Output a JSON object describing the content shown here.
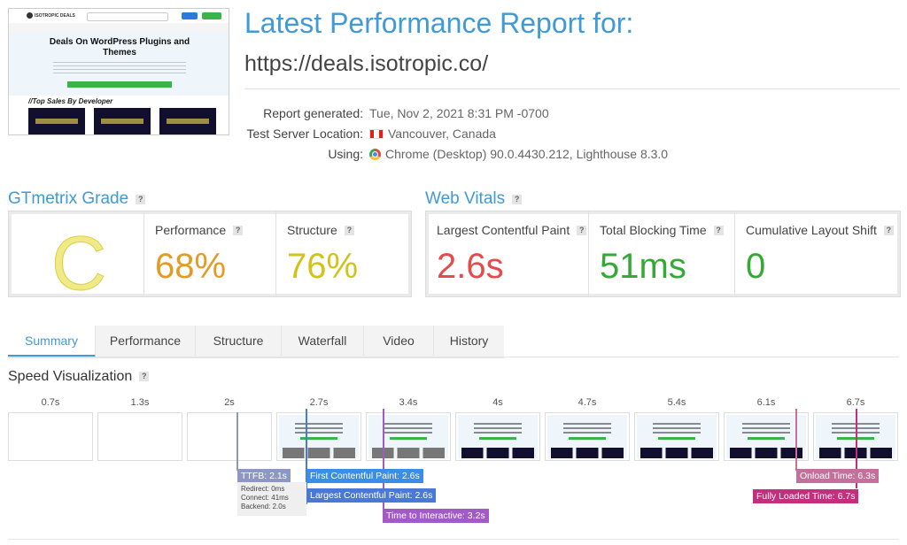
{
  "thumbnail": {
    "site_logo": "ISOTROPIC DEALS",
    "hero_title": "Deals On WordPress Plugins and Themes",
    "section_title": "//Top Sales By Developer"
  },
  "header": {
    "title": "Latest Performance Report for:",
    "url": "https://deals.isotropic.co/"
  },
  "meta": {
    "report_generated_label": "Report generated:",
    "report_generated_value": "Tue, Nov 2, 2021 8:31 PM -0700",
    "location_label": "Test Server Location:",
    "location_value": "Vancouver, Canada",
    "using_label": "Using:",
    "using_value": "Chrome (Desktop) 90.0.4430.212, Lighthouse 8.3.0"
  },
  "gtmetrix": {
    "title": "GTmetrix Grade",
    "grade": "C",
    "performance_label": "Performance",
    "performance_value": "68%",
    "structure_label": "Structure",
    "structure_value": "76%"
  },
  "web_vitals": {
    "title": "Web Vitals",
    "lcp_label": "Largest Contentful Paint",
    "lcp_value": "2.6s",
    "tbt_label": "Total Blocking Time",
    "tbt_value": "51ms",
    "cls_label": "Cumulative Layout Shift",
    "cls_value": "0"
  },
  "tabs": [
    {
      "label": "Summary",
      "active": true
    },
    {
      "label": "Performance"
    },
    {
      "label": "Structure"
    },
    {
      "label": "Waterfall"
    },
    {
      "label": "Video"
    },
    {
      "label": "History"
    }
  ],
  "speed": {
    "title": "Speed Visualization",
    "time_labels": [
      "0.7s",
      "1.3s",
      "2s",
      "2.7s",
      "3.4s",
      "4s",
      "4.7s",
      "5.4s",
      "6.1s",
      "6.7s"
    ],
    "markers": {
      "ttfb": "TTFB: 2.1s",
      "fcp": "First Contentful Paint: 2.6s",
      "lcp": "Largest Contentful Paint: 2.6s",
      "tti": "Time to Interactive: 3.2s",
      "onload": "Onload Time: 6.3s",
      "fully_loaded": "Fully Loaded Time: 6.7s"
    },
    "ttfb_detail": {
      "redirect": "Redirect: 0ms",
      "connect": "Connect: 41ms",
      "backend": "Backend: 2.0s"
    }
  },
  "colors": {
    "accent": "#3f9ad6",
    "grade_c": "#e7df5a",
    "performance": "#e49b24",
    "structure": "#d2c21c",
    "lcp": "#e64a4a",
    "tbt": "#35a935",
    "cls": "#35a935",
    "ttfb": "#8c97c6",
    "fcp": "#4a78d6",
    "tti": "#a25ac6",
    "onload": "#c4709a",
    "fully": "#c32f7c"
  },
  "icons": {
    "help": "question-icon",
    "flag": "canada-flag-icon",
    "browser": "chrome-icon"
  }
}
